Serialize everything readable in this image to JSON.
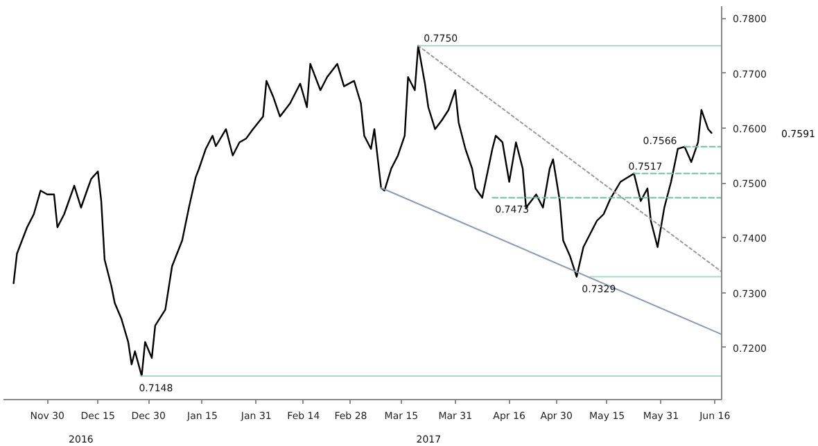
{
  "chart_data": {
    "type": "line",
    "xlim": [
      "2016-11-17",
      "2017-06-18"
    ],
    "ylim": [
      0.7105,
      0.7822
    ],
    "xticks": [
      {
        "value": "2016-11-30",
        "label": "Nov 30"
      },
      {
        "value": "2016-12-15",
        "label": "Dec 15"
      },
      {
        "value": "2016-12-30",
        "label": "Dec 30"
      },
      {
        "value": "2017-01-15",
        "label": "Jan 15"
      },
      {
        "value": "2017-01-31",
        "label": "Jan 31"
      },
      {
        "value": "2017-02-14",
        "label": "Feb 14"
      },
      {
        "value": "2017-02-28",
        "label": "Feb 28"
      },
      {
        "value": "2017-03-15",
        "label": "Mar 15"
      },
      {
        "value": "2017-03-31",
        "label": "Mar 31"
      },
      {
        "value": "2017-04-16",
        "label": "Apr 16"
      },
      {
        "value": "2017-04-30",
        "label": "Apr 30"
      },
      {
        "value": "2017-05-15",
        "label": "May 15"
      },
      {
        "value": "2017-05-31",
        "label": "May 31"
      },
      {
        "value": "2017-06-16",
        "label": "Jun 16"
      }
    ],
    "yticks": [
      {
        "value": 0.72,
        "label": "0.7200"
      },
      {
        "value": 0.73,
        "label": "0.7300"
      },
      {
        "value": 0.74,
        "label": "0.7400"
      },
      {
        "value": 0.75,
        "label": "0.7500"
      },
      {
        "value": 0.76,
        "label": "0.7600"
      },
      {
        "value": 0.77,
        "label": "0.7700"
      },
      {
        "value": 0.78,
        "label": "0.7800"
      }
    ],
    "grid": false,
    "marker": "none",
    "series": [
      {
        "color": "#000000",
        "line_style": "solid",
        "x": [
          "2016-11-20",
          "2016-11-21",
          "2016-11-24",
          "2016-11-26",
          "2016-11-28",
          "2016-11-30",
          "2016-12-02",
          "2016-12-03",
          "2016-12-05",
          "2016-12-08",
          "2016-12-10",
          "2016-12-12",
          "2016-12-13",
          "2016-12-15",
          "2016-12-16",
          "2016-12-17",
          "2016-12-19",
          "2016-12-20",
          "2016-12-22",
          "2016-12-24",
          "2016-12-25",
          "2016-12-26",
          "2016-12-28",
          "2016-12-29",
          "2016-12-31",
          "2017-01-01",
          "2017-01-04",
          "2017-01-06",
          "2017-01-09",
          "2017-01-11",
          "2017-01-13",
          "2017-01-14",
          "2017-01-16",
          "2017-01-18",
          "2017-01-19",
          "2017-01-22",
          "2017-01-24",
          "2017-01-26",
          "2017-01-28",
          "2017-01-30",
          "2017-02-02",
          "2017-02-03",
          "2017-02-05",
          "2017-02-07",
          "2017-02-10",
          "2017-02-13",
          "2017-02-15",
          "2017-02-16",
          "2017-02-19",
          "2017-02-21",
          "2017-02-24",
          "2017-02-26",
          "2017-03-01",
          "2017-03-03",
          "2017-03-04",
          "2017-03-06",
          "2017-03-07",
          "2017-03-09",
          "2017-03-10",
          "2017-03-12",
          "2017-03-14",
          "2017-03-16",
          "2017-03-17",
          "2017-03-19",
          "2017-03-20",
          "2017-03-22",
          "2017-03-23",
          "2017-03-25",
          "2017-03-27",
          "2017-03-29",
          "2017-03-31",
          "2017-04-01",
          "2017-04-03",
          "2017-04-05",
          "2017-04-06",
          "2017-04-08",
          "2017-04-11",
          "2017-04-12",
          "2017-04-14",
          "2017-04-15",
          "2017-04-16",
          "2017-04-18",
          "2017-04-20",
          "2017-04-21",
          "2017-04-24",
          "2017-04-26",
          "2017-04-28",
          "2017-04-29",
          "2017-05-01",
          "2017-05-02",
          "2017-05-04",
          "2017-05-06",
          "2017-05-08",
          "2017-05-10",
          "2017-05-12",
          "2017-05-14",
          "2017-05-16",
          "2017-05-19",
          "2017-05-23",
          "2017-05-25",
          "2017-05-27",
          "2017-05-28",
          "2017-05-30",
          "2017-06-01",
          "2017-06-03",
          "2017-06-05",
          "2017-06-07",
          "2017-06-09",
          "2017-06-11",
          "2017-06-12",
          "2017-06-14",
          "2017-06-15"
        ],
        "values": [
          0.7317,
          0.7371,
          0.7419,
          0.7443,
          0.7486,
          0.7479,
          0.7479,
          0.7419,
          0.7443,
          0.7495,
          0.7455,
          0.749,
          0.7507,
          0.7521,
          0.7467,
          0.736,
          0.7312,
          0.7281,
          0.7252,
          0.721,
          0.7169,
          0.7193,
          0.7148,
          0.721,
          0.7181,
          0.724,
          0.7269,
          0.7348,
          0.7395,
          0.7455,
          0.751,
          0.7526,
          0.7562,
          0.7586,
          0.7567,
          0.7598,
          0.755,
          0.7574,
          0.7581,
          0.7598,
          0.7621,
          0.7686,
          0.7657,
          0.7621,
          0.7645,
          0.7681,
          0.7638,
          0.7717,
          0.7669,
          0.7693,
          0.7717,
          0.7676,
          0.7686,
          0.7645,
          0.7586,
          0.7562,
          0.7598,
          0.7491,
          0.7486,
          0.7526,
          0.755,
          0.7586,
          0.7693,
          0.7669,
          0.775,
          0.7681,
          0.7638,
          0.7598,
          0.7614,
          0.7633,
          0.7669,
          0.761,
          0.7562,
          0.7526,
          0.749,
          0.7473,
          0.7562,
          0.7586,
          0.7574,
          0.7538,
          0.7502,
          0.7574,
          0.7526,
          0.7455,
          0.7479,
          0.7455,
          0.7526,
          0.7543,
          0.7467,
          0.7395,
          0.7367,
          0.7329,
          0.7383,
          0.7407,
          0.7431,
          0.7443,
          0.7471,
          0.7502,
          0.7517,
          0.7467,
          0.749,
          0.7431,
          0.7383,
          0.7455,
          0.7502,
          0.7562,
          0.7566,
          0.7538,
          0.7574,
          0.7633,
          0.7598,
          0.7591
        ]
      },
      {
        "color": "#a9dcc8",
        "line_style": "solid",
        "x": [
          "2017-03-20",
          "2017-06-18"
        ],
        "values": [
          0.775,
          0.775
        ]
      },
      {
        "color": "#a9dcc8",
        "line_style": "solid",
        "x": [
          "2016-12-28",
          "2017-06-18"
        ],
        "values": [
          0.7148,
          0.7148
        ]
      },
      {
        "color": "#a9dcc8",
        "line_style": "solid",
        "x": [
          "2017-05-10",
          "2017-06-18"
        ],
        "values": [
          0.7329,
          0.7329
        ]
      },
      {
        "color": "#6fbf9c",
        "line_style": "dashed",
        "x": [
          "2017-04-11",
          "2017-06-18"
        ],
        "values": [
          0.7473,
          0.7473
        ]
      },
      {
        "color": "#6fbf9c",
        "line_style": "dashed",
        "x": [
          "2017-05-23",
          "2017-06-18"
        ],
        "values": [
          0.7517,
          0.7517
        ]
      },
      {
        "color": "#6fbf9c",
        "line_style": "dashed",
        "x": [
          "2017-06-07",
          "2017-06-18"
        ],
        "values": [
          0.7566,
          0.7566
        ]
      },
      {
        "color": "#999999",
        "line_style": "dotted",
        "x": [
          "2017-03-20",
          "2017-06-18"
        ],
        "values": [
          0.775,
          0.7338
        ]
      },
      {
        "color": "#8d9bb8",
        "line_style": "solid",
        "x": [
          "2017-03-09",
          "2017-06-18"
        ],
        "values": [
          0.7491,
          0.7224
        ]
      }
    ],
    "annotations": [
      {
        "text": "0.7750",
        "x": "2017-03-20",
        "y": 0.775
      },
      {
        "text": "0.7148",
        "x": "2016-12-28",
        "y": 0.7148
      },
      {
        "text": "0.7473",
        "x": "2017-04-11",
        "y": 0.7473
      },
      {
        "text": "0.7329",
        "x": "2017-05-10",
        "y": 0.7329
      },
      {
        "text": "0.7517",
        "x": "2017-05-23",
        "y": 0.7517
      },
      {
        "text": "0.7566",
        "x": "2017-06-07",
        "y": 0.7566
      },
      "0.7591",
      "2016",
      "2017"
    ]
  }
}
